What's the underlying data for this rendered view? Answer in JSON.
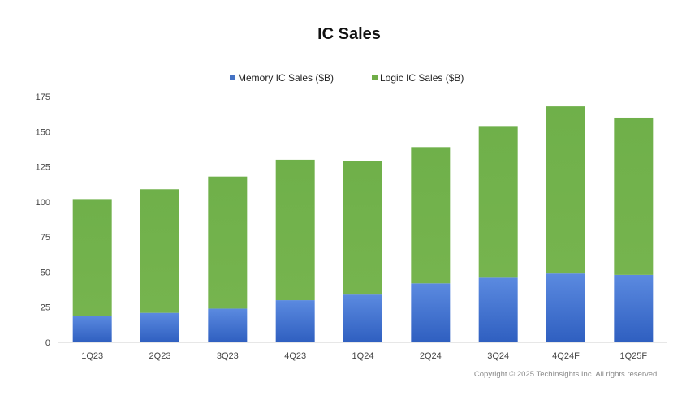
{
  "chart_data": {
    "type": "bar",
    "stacked": true,
    "title": "IC Sales",
    "xlabel": "",
    "ylabel": "",
    "categories": [
      "1Q23",
      "2Q23",
      "3Q23",
      "4Q23",
      "1Q24",
      "2Q24",
      "3Q24",
      "4Q24F",
      "1Q25F"
    ],
    "series": [
      {
        "name": "Memory IC Sales ($B)",
        "color": "#4472c4",
        "values": [
          19,
          21,
          24,
          30,
          34,
          42,
          46,
          49,
          48
        ]
      },
      {
        "name": "Logic IC Sales ($B)",
        "color": "#70ad47",
        "values": [
          83,
          88,
          94,
          100,
          95,
          97,
          108,
          119,
          112
        ]
      }
    ],
    "ylim": [
      0,
      175
    ],
    "yticks": [
      0,
      25,
      50,
      75,
      100,
      125,
      150,
      175
    ],
    "grid": false,
    "legend_position": "top-center"
  },
  "footer": {
    "copyright": "Copyright © 2025 TechInsights Inc.  All rights reserved."
  }
}
